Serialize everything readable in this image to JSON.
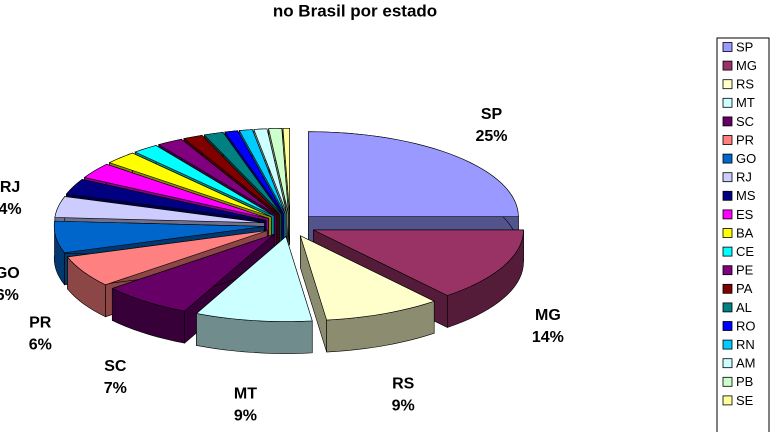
{
  "chart_data": {
    "type": "pie3d",
    "title": "no Brasil por estado",
    "categories": [
      "SP",
      "MG",
      "RS",
      "MT",
      "SC",
      "PR",
      "GO",
      "RJ",
      "MS",
      "ES",
      "BA",
      "CE",
      "PE",
      "PA",
      "AL",
      "RO",
      "RN",
      "AM",
      "PB",
      "SE"
    ],
    "values": [
      25,
      14,
      9,
      9,
      7,
      6,
      6,
      4,
      3,
      3,
      2.5,
      2,
      2,
      1.5,
      1.5,
      1,
      1,
      1,
      1,
      0.5
    ],
    "value_labels": [
      "25%",
      "14%",
      "9%",
      "9%",
      "7%",
      "6%",
      "6%",
      "4%",
      null,
      null,
      null,
      null,
      null,
      null,
      null,
      null,
      null,
      null,
      null,
      null
    ],
    "colors": [
      "#9999ff",
      "#993366",
      "#ffffcc",
      "#ccffff",
      "#660066",
      "#ff8080",
      "#0066cc",
      "#ccccff",
      "#000080",
      "#ff00ff",
      "#ffff00",
      "#00ffff",
      "#800080",
      "#800000",
      "#008080",
      "#0000ff",
      "#00ccff",
      "#ccffff",
      "#ccffcc",
      "#ffff99"
    ],
    "legend": "right"
  }
}
